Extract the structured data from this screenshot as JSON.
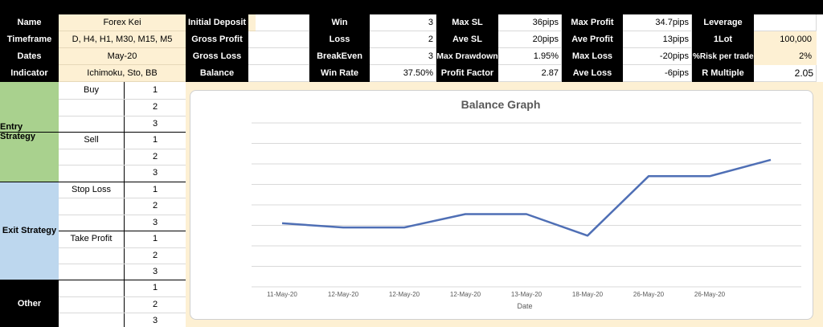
{
  "header": {
    "row1": {
      "name_label": "Name",
      "name_value": "Forex Kei",
      "deposit_label": "Initial Deposit",
      "deposit_value": "",
      "win_label": "Win",
      "win_value": "3",
      "maxsl_label": "Max SL",
      "maxsl_value": "36pips",
      "maxprofit_label": "Max Profit",
      "maxprofit_value": "34.7pips",
      "leverage_label": "Leverage",
      "leverage_value": ""
    },
    "row2": {
      "timeframe_label": "Timeframe",
      "timeframe_value": "D, H4, H1, M30, M15, M5",
      "grossprofit_label": "Gross Profit",
      "grossprofit_value": "",
      "loss_label": "Loss",
      "loss_value": "2",
      "avesl_label": "Ave SL",
      "avesl_value": "20pips",
      "aveprofit_label": "Ave Profit",
      "aveprofit_value": "13pips",
      "lot_label": "1Lot",
      "lot_value": "100,000"
    },
    "row3": {
      "dates_label": "Dates",
      "dates_value": "May-20",
      "grossloss_label": "Gross Loss",
      "grossloss_value": "",
      "breakeven_label": "BreakEven",
      "breakeven_value": "3",
      "maxdd_label": "Max Drawdown",
      "maxdd_value": "1.95%",
      "maxloss_label": "Max Loss",
      "maxloss_value": "-20pips",
      "risk_label": "%Risk per trade",
      "risk_value": "2%"
    },
    "row4": {
      "indicator_label": "Indicator",
      "indicator_value": "Ichimoku, Sto, BB",
      "balance_label": "Balance",
      "balance_value": "",
      "winrate_label": "Win Rate",
      "winrate_value": "37.50%",
      "pf_label": "Profit Factor",
      "pf_value": "2.87",
      "aveloss_label": "Ave Loss",
      "aveloss_value": "-6pips",
      "rmultiple_label": "R Multiple",
      "rmultiple_value": "2.05"
    }
  },
  "strategy": {
    "entry": {
      "label": "Entry Strategy",
      "buy": "Buy",
      "sell": "Sell"
    },
    "exit": {
      "label": "Exit Strategy",
      "stoploss": "Stop Loss",
      "takeprofit": "Take Profit"
    },
    "other": {
      "label": "Other"
    },
    "numbers": [
      "1",
      "2",
      "3"
    ]
  },
  "colors": {
    "entry": "#a9d18e",
    "exit": "#bdd7ee",
    "cream": "#fdf0d3",
    "line": "#4f6fb5"
  },
  "chart_data": {
    "type": "line",
    "title": "Balance Graph",
    "xlabel": "Date",
    "ylabel": "",
    "categories": [
      "11-May-20",
      "12-May-20",
      "12-May-20",
      "12-May-20",
      "13-May-20",
      "18-May-20",
      "26-May-20",
      "26-May-20",
      ""
    ],
    "series": [
      {
        "values": [
          3.1,
          2.9,
          2.9,
          3.55,
          3.55,
          2.5,
          5.4,
          5.4,
          6.2
        ]
      }
    ],
    "ylim": [
      0,
      8
    ],
    "grid": true,
    "legend": "none"
  }
}
